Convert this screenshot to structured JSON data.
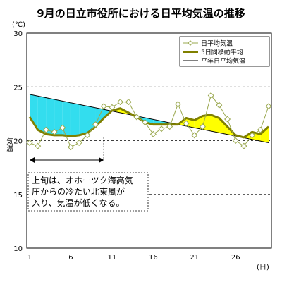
{
  "chart_data": {
    "type": "line",
    "title": "9月の日立市役所における日平均気温の推移",
    "y_unit": "(℃)",
    "ylabel": "気温",
    "x_unit": "(日)",
    "ylim": [
      10,
      30
    ],
    "yticks": [
      10,
      15,
      20,
      25,
      30
    ],
    "xlim": [
      1,
      30
    ],
    "xticks": [
      1,
      6,
      11,
      16,
      21,
      26
    ],
    "grid": "horizontal-dashed",
    "legend_position": "top-right",
    "colors": {
      "daily": "#9aa84f",
      "moving": "#808000",
      "normal": "#000000",
      "fill_below": "#33ddee",
      "fill_above": "#ffff00",
      "annotation": "#000000"
    },
    "series": [
      {
        "name": "日平均気温",
        "x": [
          1,
          2,
          3,
          4,
          5,
          6,
          7,
          8,
          9,
          10,
          11,
          12,
          13,
          14,
          15,
          16,
          17,
          18,
          19,
          20,
          21,
          22,
          23,
          24,
          25,
          26,
          27,
          28,
          29,
          30
        ],
        "values": [
          19.8,
          19.5,
          21.0,
          20.8,
          21.2,
          19.4,
          19.8,
          20.5,
          21.5,
          23.2,
          23.1,
          23.6,
          23.6,
          22.2,
          21.7,
          20.6,
          21.1,
          21.3,
          23.4,
          21.6,
          20.5,
          21.3,
          24.2,
          23.3,
          22.0,
          20.0,
          19.5,
          20.5,
          21.0,
          23.2
        ]
      },
      {
        "name": "5日間移動平均",
        "x": [
          1,
          2,
          3,
          4,
          5,
          6,
          7,
          8,
          9,
          10,
          11,
          12,
          13,
          14,
          15,
          16,
          17,
          18,
          19,
          20,
          21,
          22,
          23,
          24,
          25,
          26,
          27,
          28,
          29,
          30
        ],
        "values": [
          22.2,
          21.0,
          20.6,
          20.5,
          20.5,
          20.4,
          20.5,
          20.7,
          21.3,
          22.1,
          22.8,
          23.0,
          22.6,
          22.2,
          21.7,
          21.5,
          21.5,
          21.5,
          21.5,
          22.1,
          21.9,
          22.3,
          22.4,
          22.1,
          21.3,
          20.5,
          20.3,
          20.8,
          20.6,
          21.3
        ]
      },
      {
        "name": "平年日平均気温",
        "x": [
          1,
          30
        ],
        "values": [
          24.3,
          19.8
        ]
      }
    ],
    "annotation": {
      "range_x": [
        1,
        10
      ],
      "lines": [
        "上旬は、オホーツク海高気",
        "圧からの冷たい北東風が",
        "入り、気温が低くなる。"
      ]
    }
  }
}
